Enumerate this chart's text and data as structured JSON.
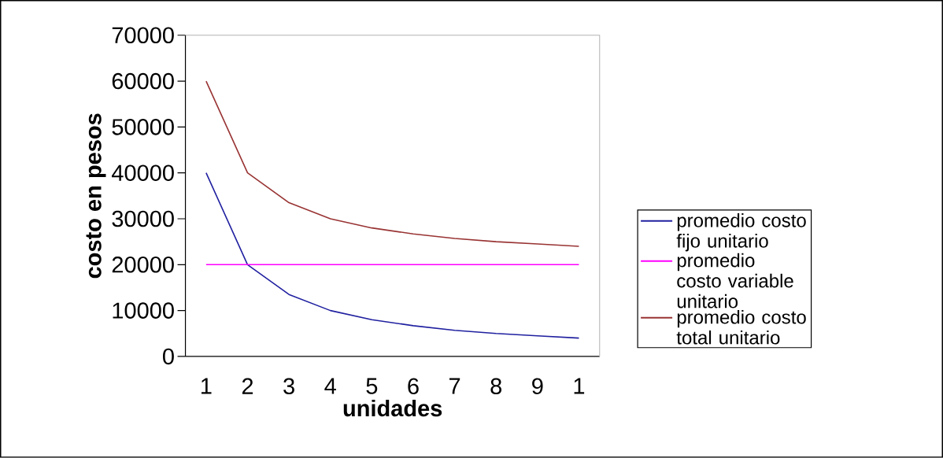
{
  "chart_data": {
    "type": "line",
    "xlabel": "unidades",
    "ylabel": "costo en pesos",
    "categories": [
      "1",
      "2",
      "3",
      "4",
      "5",
      "6",
      "7",
      "8",
      "9",
      "1"
    ],
    "ylim": [
      0,
      70000
    ],
    "yticks": [
      0,
      10000,
      20000,
      30000,
      40000,
      50000,
      60000,
      70000
    ],
    "legend": "right",
    "marker": "none",
    "series": [
      {
        "name": "promedio costo fijo unitario",
        "color": "#2020a0",
        "values": [
          40000,
          20000,
          13500,
          10000,
          8000,
          6700,
          5700,
          5000,
          4500,
          4000
        ]
      },
      {
        "name": "promedio costo variable unitario",
        "color": "#ff00ff",
        "values": [
          20000,
          20000,
          20000,
          20000,
          20000,
          20000,
          20000,
          20000,
          20000,
          20000
        ]
      },
      {
        "name": "promedio costo total unitario",
        "color": "#993333",
        "values": [
          60000,
          40000,
          33500,
          30000,
          28000,
          26700,
          25700,
          25000,
          24500,
          24000
        ]
      }
    ]
  }
}
